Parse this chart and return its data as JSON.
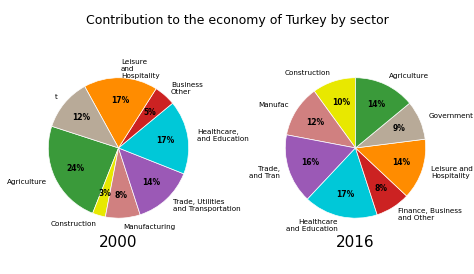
{
  "title": "Contribution to the economy of Turkey by sector",
  "title_fontsize": 9,
  "year_fontsize": 11,
  "label_fontsize": 5.2,
  "pct_fontsize": 5.5,
  "background_color": "#ffffff",
  "chart2000": {
    "year": "2000",
    "labels": [
      "Agriculture",
      "Construction",
      "Manufacturing",
      "Trade, Utilities\nand Transportation",
      "Healthcare,\nand Education",
      "Business\nOther",
      "Leisure\nand\nHospitality",
      "t"
    ],
    "values": [
      24,
      3,
      8,
      14,
      17,
      5,
      17,
      12
    ],
    "colors": [
      "#3a9a3a",
      "#e8e800",
      "#d08080",
      "#9b59b6",
      "#00c8d8",
      "#cc2222",
      "#ff8c00",
      "#b8aa98"
    ]
  },
  "chart2016": {
    "year": "2016",
    "labels": [
      "Construction",
      "Manufac",
      "Trade,\nand Tran",
      "Healthcare\nand Education",
      "Finance, Business\nand Other",
      "Leisure and\nHospitality",
      "Government",
      "Agriculture"
    ],
    "values": [
      10,
      12,
      16,
      17,
      8,
      14,
      9,
      14
    ],
    "colors": [
      "#e8e800",
      "#d08080",
      "#9b59b6",
      "#00c8d8",
      "#cc2222",
      "#ff8c00",
      "#b8aa98",
      "#3a9a3a"
    ]
  }
}
